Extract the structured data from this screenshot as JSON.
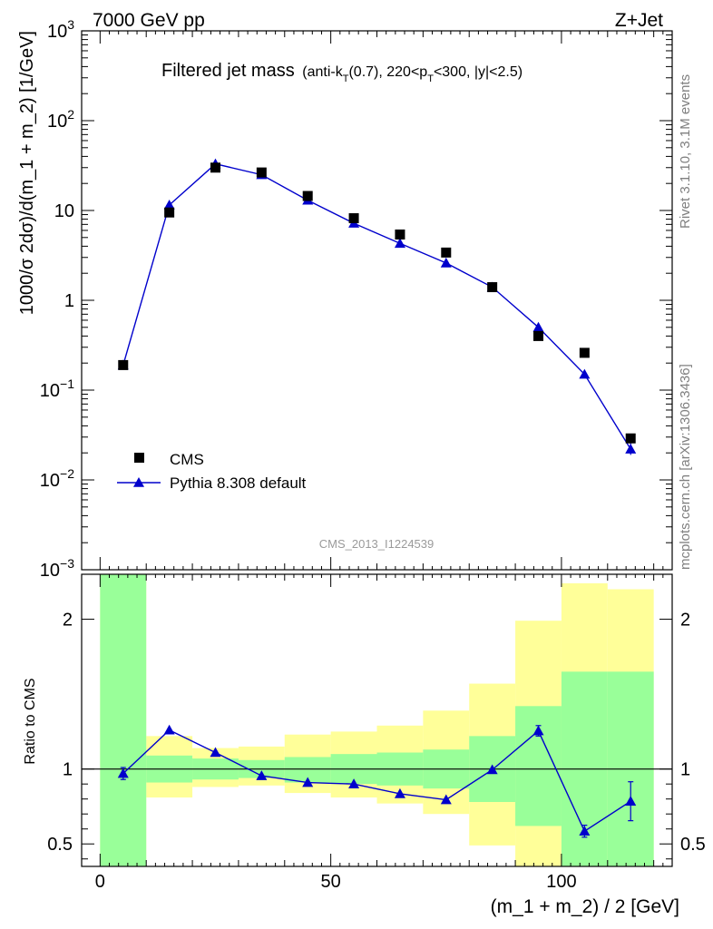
{
  "header": {
    "left": "7000 GeV pp",
    "right": "Z+Jet"
  },
  "title": {
    "main": "Filtered jet mass",
    "sub_prefix": "(anti-k",
    "sub_sub1": "T",
    "sub_mid": "(0.7), 220<p",
    "sub_sub2": "T",
    "sub_suffix": "<300, |y|<2.5)"
  },
  "watermark": "CMS_2013_I1224539",
  "side_labels": {
    "rivet": "Rivet 3.1.10,  3.1M events",
    "mcplots": "mcplots.cern.ch [arXiv:1306.3436]"
  },
  "colors": {
    "data": "#000000",
    "mc": "#0000cc",
    "band_inner": "#99ff99",
    "band_outer": "#ffff99"
  },
  "chart_data": [
    {
      "type": "scatter",
      "panel": "main",
      "ylabel": "1000/σ 2dσ)/d(m_1 + m_2) [1/GeV]",
      "yscale": "log",
      "ylim": [
        0.001,
        1000
      ],
      "xlim": [
        -4,
        124
      ],
      "yticks": [
        {
          "value": 1000,
          "base": "10",
          "exp": "3"
        },
        {
          "value": 100,
          "base": "10",
          "exp": "2"
        },
        {
          "value": 10,
          "base": "10",
          "exp": ""
        },
        {
          "value": 1,
          "base": "1",
          "exp": ""
        },
        {
          "value": 0.1,
          "base": "10",
          "exp": "−1"
        },
        {
          "value": 0.01,
          "base": "10",
          "exp": "−2"
        },
        {
          "value": 0.001,
          "base": "10",
          "exp": "−3"
        }
      ],
      "x": [
        5,
        15,
        25,
        35,
        45,
        55,
        65,
        75,
        85,
        95,
        105,
        115
      ],
      "series": [
        {
          "name": "CMS",
          "marker": "square",
          "values": [
            0.19,
            9.5,
            30,
            26.5,
            14.5,
            8.2,
            5.4,
            3.4,
            1.4,
            0.4,
            0.26,
            0.029
          ]
        },
        {
          "name": "Pythia 8.308 default",
          "marker": "triangle",
          "line": true,
          "values": [
            0.19,
            11.5,
            33,
            25,
            13,
            7.2,
            4.3,
            2.6,
            1.4,
            0.5,
            0.15,
            0.022
          ]
        }
      ],
      "legend_position": "lower-left"
    },
    {
      "type": "line",
      "panel": "ratio",
      "ylabel": "Ratio to CMS",
      "xlabel": "(m_1 + m_2) / 2 [GeV]",
      "ylim": [
        0.35,
        2.3
      ],
      "xlim": [
        -4,
        124
      ],
      "xticks": [
        "0",
        "50",
        "100"
      ],
      "xtick_values": [
        0,
        50,
        100
      ],
      "yticks": [
        "0.5",
        "1",
        "2"
      ],
      "ytick_values": [
        0.5,
        1,
        2
      ],
      "bins": [
        [
          0,
          10
        ],
        [
          10,
          20
        ],
        [
          20,
          30
        ],
        [
          30,
          40
        ],
        [
          40,
          50
        ],
        [
          50,
          60
        ],
        [
          60,
          70
        ],
        [
          70,
          80
        ],
        [
          80,
          90
        ],
        [
          90,
          100
        ],
        [
          100,
          110
        ],
        [
          110,
          120
        ]
      ],
      "band_inner": [
        [
          0.35,
          2.3
        ],
        [
          0.91,
          1.09
        ],
        [
          0.93,
          1.07
        ],
        [
          0.94,
          1.06
        ],
        [
          0.91,
          1.08
        ],
        [
          0.9,
          1.1
        ],
        [
          0.89,
          1.11
        ],
        [
          0.87,
          1.13
        ],
        [
          0.78,
          1.22
        ],
        [
          0.62,
          1.42
        ],
        [
          0.35,
          1.65
        ],
        [
          0.35,
          1.65
        ]
      ],
      "band_outer": [
        [
          0.35,
          2.3
        ],
        [
          0.81,
          1.22
        ],
        [
          0.88,
          1.14
        ],
        [
          0.89,
          1.15
        ],
        [
          0.84,
          1.23
        ],
        [
          0.81,
          1.25
        ],
        [
          0.77,
          1.29
        ],
        [
          0.7,
          1.39
        ],
        [
          0.49,
          1.57
        ],
        [
          0.35,
          1.99
        ],
        [
          0.35,
          2.24
        ],
        [
          0.35,
          2.2
        ]
      ],
      "x": [
        5,
        15,
        25,
        35,
        45,
        55,
        65,
        75,
        85,
        95,
        105,
        115
      ],
      "series": [
        {
          "name": "Pythia 8.308 default",
          "values": [
            0.97,
            1.26,
            1.11,
            0.955,
            0.91,
            0.9,
            0.835,
            0.795,
            0.995,
            1.255,
            0.585,
            0.785
          ],
          "err_low": [
            0.04,
            0.01,
            0.01,
            0.005,
            0.005,
            0.005,
            0.01,
            0.01,
            0.01,
            0.035,
            0.04,
            0.13
          ],
          "err_high": [
            0.04,
            0.01,
            0.01,
            0.005,
            0.005,
            0.005,
            0.01,
            0.01,
            0.01,
            0.035,
            0.04,
            0.13
          ]
        }
      ],
      "reference_line": 1
    }
  ]
}
